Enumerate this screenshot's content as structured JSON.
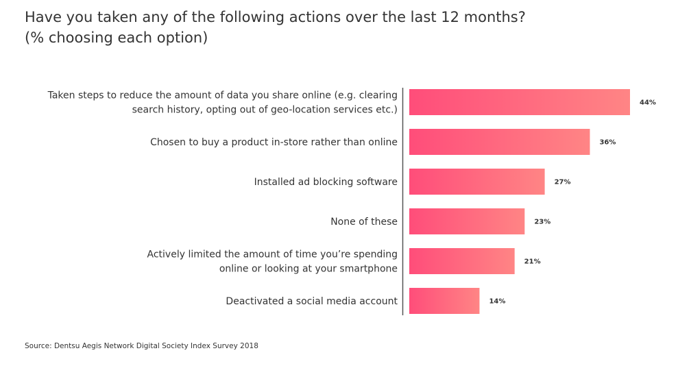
{
  "title_line1": "Have you taken any of the following actions over the last 12 months?",
  "title_line2": "(% choosing each option)",
  "source": "Source: Dentsu Aegis Network Digital Society Index Survey 2018",
  "colors": {
    "bar_start": "#ff4d7a",
    "bar_end": "#ff8585",
    "axis": "#555555"
  },
  "chart_data": {
    "type": "bar",
    "orientation": "horizontal",
    "title": "Have you taken any of the following actions over the last 12 months? (% choosing each option)",
    "categories": [
      [
        "Taken steps to reduce the amount of data you share online (e.g. clearing",
        "search history, opting out of geo-location services etc.)"
      ],
      [
        "Chosen to  buy a product in-store rather than online"
      ],
      [
        "Installed ad blocking software"
      ],
      [
        "None of these"
      ],
      [
        "Actively limited the amount of time you’re spending",
        "online or looking at your smartphone"
      ],
      [
        "Deactivated a social media account"
      ]
    ],
    "values": [
      44,
      36,
      27,
      23,
      21,
      14
    ],
    "value_labels": [
      "44%",
      "36%",
      "27%",
      "23%",
      "21%",
      "14%"
    ],
    "unit": "%",
    "xlim": [
      0,
      44
    ],
    "grid": false,
    "legend": "none"
  }
}
